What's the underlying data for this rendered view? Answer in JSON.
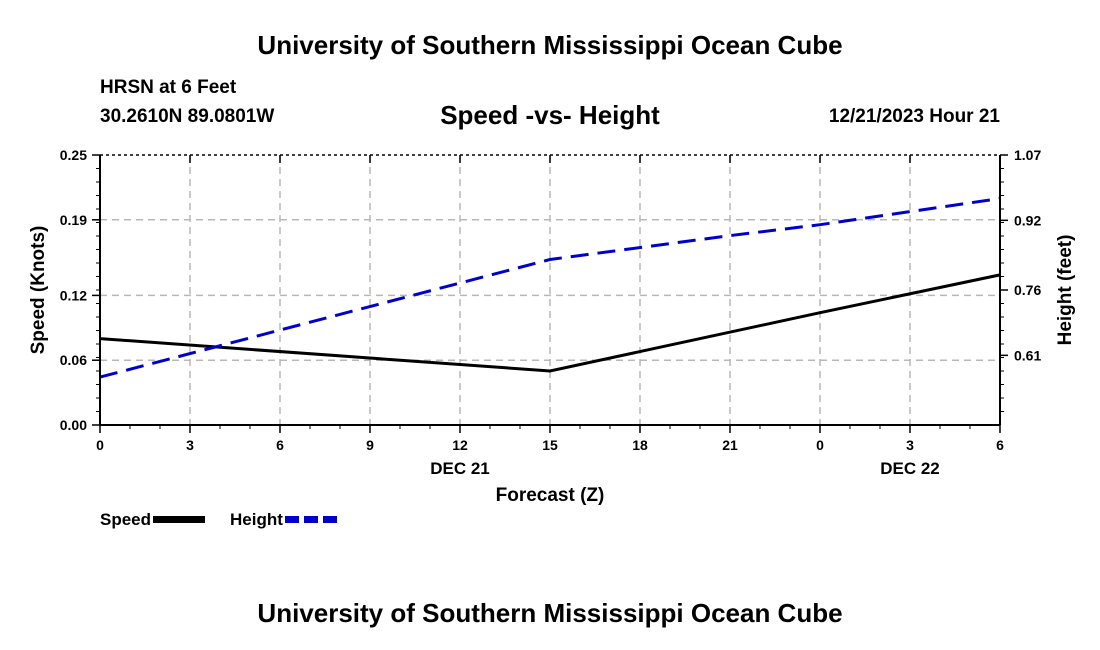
{
  "header": {
    "title": "University of Southern Mississippi Ocean Cube",
    "station": "HRSN at 6 Feet",
    "coordinates": "30.2610N  89.0801W",
    "datetime": "12/21/2023 Hour 21"
  },
  "footer": {
    "title": "University of Southern Mississippi Ocean Cube"
  },
  "chart_data": {
    "type": "line",
    "title": "Speed -vs- Height",
    "xlabel": "Forecast (Z)",
    "ylabel_left": "Speed (Knots)",
    "ylabel_right": "Height (feet)",
    "x": [
      0,
      3,
      6,
      9,
      12,
      15,
      18,
      21,
      24,
      27,
      30
    ],
    "xlim": [
      0,
      30
    ],
    "x_tick_labels": [
      "0",
      "3",
      "6",
      "9",
      "12",
      "15",
      "18",
      "21",
      "0",
      "3",
      "6"
    ],
    "date_labels": [
      {
        "x": 12,
        "label": "DEC 21"
      },
      {
        "x": 27,
        "label": "DEC 22"
      }
    ],
    "y_left": {
      "lim": [
        0,
        0.25
      ],
      "ticks": [
        0.0,
        0.06,
        0.12,
        0.19,
        0.25
      ],
      "tick_labels": [
        "0.00",
        "0.06",
        "0.12",
        "0.19",
        "0.25"
      ]
    },
    "y_right": {
      "lim": [
        0.45,
        1.07
      ],
      "ticks": [
        0.61,
        0.76,
        0.92,
        1.07
      ],
      "tick_labels": [
        "0.61",
        "0.76",
        "0.92",
        "1.07"
      ]
    },
    "grid": true,
    "series": [
      {
        "name": "Speed",
        "axis": "left",
        "color": "#000000",
        "style": "solid",
        "points": [
          [
            0,
            0.08
          ],
          [
            15,
            0.05
          ],
          [
            24,
            0.104
          ],
          [
            30,
            0.139
          ]
        ]
      },
      {
        "name": "Height",
        "axis": "right",
        "color": "#0000cc",
        "style": "dashed",
        "points": [
          [
            0,
            0.56
          ],
          [
            15,
            0.83
          ],
          [
            21,
            0.885
          ],
          [
            24,
            0.91
          ],
          [
            30,
            0.97
          ]
        ]
      }
    ],
    "legend": [
      {
        "label": "Speed",
        "color": "#000000",
        "style": "solid"
      },
      {
        "label": "Height",
        "color": "#0000cc",
        "style": "dashed"
      }
    ]
  }
}
